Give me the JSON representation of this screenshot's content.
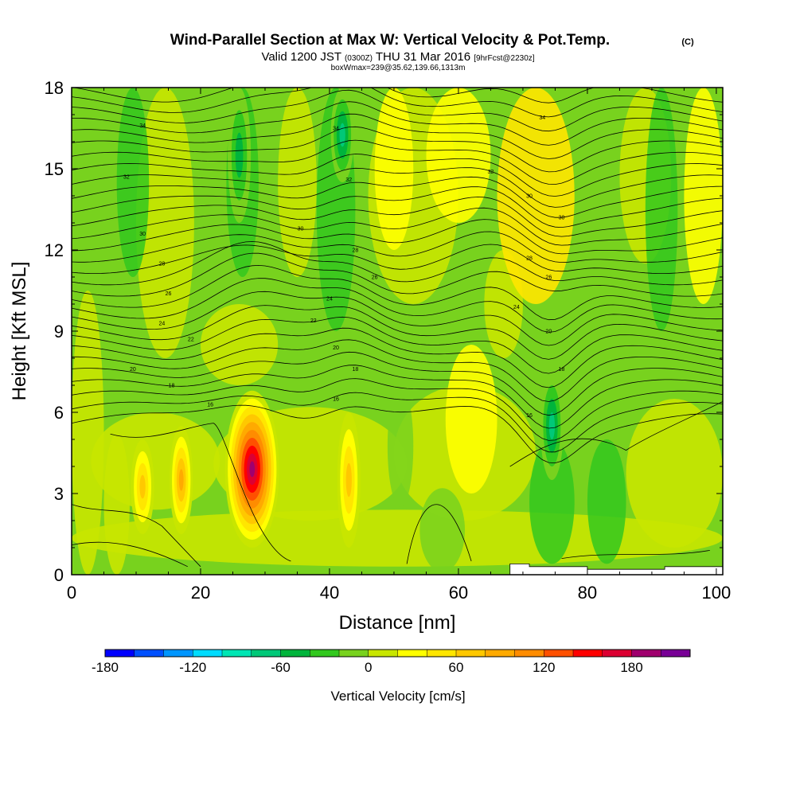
{
  "header": {
    "title": "Wind-Parallel Section at Max W: Vertical Velocity & Pot.Temp.",
    "copyright": "(C)",
    "valid_prefix": "Valid 1200 JST",
    "valid_utc": "(0300Z)",
    "valid_date": "THU 31 Mar 2016",
    "forecast_tag": "[9hrFcst@2230z]",
    "box_info": "boxWmax=239@35.62,139.66,1313m"
  },
  "chart_data": {
    "type": "heatmap",
    "xlabel": "Distance [nm]",
    "ylabel": "Height [Kft MSL]",
    "xlim": [
      0,
      101
    ],
    "ylim": [
      0,
      18
    ],
    "x_ticks": [
      "0",
      "20",
      "40",
      "60",
      "80",
      "100"
    ],
    "y_ticks": [
      "0",
      "3",
      "6",
      "9",
      "12",
      "15",
      "18"
    ],
    "colorbar": {
      "label": "Vertical Velocity [cm/s]",
      "min": -180,
      "max": 220,
      "step": 20,
      "tick_labels": [
        "-180",
        "-120",
        "-60",
        "0",
        "60",
        "120",
        "180"
      ],
      "colors": [
        "#0000ff",
        "#0050ff",
        "#0096ff",
        "#00dcff",
        "#00e6b4",
        "#00c878",
        "#00b43c",
        "#32c81e",
        "#78d21e",
        "#c8e600",
        "#ffff00",
        "#ffe600",
        "#ffc800",
        "#ffaa00",
        "#ff8c00",
        "#ff5000",
        "#ff0000",
        "#dc0032",
        "#a0006e",
        "#780096"
      ]
    },
    "features": [
      {
        "type": "updraft",
        "x": 28,
        "y_range": [
          1.0,
          6.8
        ],
        "peak_w": 200
      },
      {
        "type": "updraft",
        "x": 11,
        "y_range": [
          1.5,
          5.0
        ],
        "peak_w": 80
      },
      {
        "type": "updraft",
        "x": 17,
        "y_range": [
          1.5,
          5.5
        ],
        "peak_w": 90
      },
      {
        "type": "updraft",
        "x": 43,
        "y_range": [
          1.0,
          6.0
        ],
        "peak_w": 80
      },
      {
        "type": "downdraft",
        "x": 74.5,
        "y_range": [
          3.5,
          7.5
        ],
        "peak_w": -80
      },
      {
        "type": "downdraft",
        "x": 42,
        "y_range": [
          14.5,
          18
        ],
        "peak_w": -80
      },
      {
        "type": "downdraft",
        "x": 26,
        "y_range": [
          13,
          18
        ],
        "peak_w": -50
      }
    ],
    "terrain": [
      [
        0,
        0
      ],
      [
        68,
        0
      ],
      [
        68,
        0.4
      ],
      [
        71,
        0.4
      ],
      [
        71,
        0.3
      ],
      [
        80,
        0.3
      ],
      [
        80,
        0.2
      ],
      [
        92,
        0.2
      ],
      [
        92,
        0.3
      ],
      [
        101,
        0.3
      ]
    ],
    "theta_contour_labels": [
      {
        "text": "34",
        "x": 11,
        "y": 16.6
      },
      {
        "text": "32",
        "x": 8.5,
        "y": 14.7
      },
      {
        "text": "30",
        "x": 11,
        "y": 12.6
      },
      {
        "text": "28",
        "x": 14,
        "y": 11.5
      },
      {
        "text": "26",
        "x": 15,
        "y": 10.4
      },
      {
        "text": "24",
        "x": 14,
        "y": 9.3
      },
      {
        "text": "22",
        "x": 18.5,
        "y": 8.7
      },
      {
        "text": "20",
        "x": 9.5,
        "y": 7.6
      },
      {
        "text": "18",
        "x": 15.5,
        "y": 7.0
      },
      {
        "text": "16",
        "x": 21.5,
        "y": 6.3
      },
      {
        "text": "30",
        "x": 35.5,
        "y": 12.8
      },
      {
        "text": "24",
        "x": 40,
        "y": 10.2
      },
      {
        "text": "22",
        "x": 37.5,
        "y": 9.4
      },
      {
        "text": "20",
        "x": 41,
        "y": 8.4
      },
      {
        "text": "18",
        "x": 44,
        "y": 7.6
      },
      {
        "text": "16",
        "x": 41,
        "y": 6.5
      },
      {
        "text": "34",
        "x": 41,
        "y": 16.5
      },
      {
        "text": "32",
        "x": 43,
        "y": 14.6
      },
      {
        "text": "28",
        "x": 44,
        "y": 12.0
      },
      {
        "text": "26",
        "x": 47,
        "y": 11.0
      },
      {
        "text": "34",
        "x": 73,
        "y": 16.9
      },
      {
        "text": "32",
        "x": 65,
        "y": 14.9
      },
      {
        "text": "30",
        "x": 71,
        "y": 14.0
      },
      {
        "text": "30",
        "x": 76,
        "y": 13.2
      },
      {
        "text": "28",
        "x": 71,
        "y": 11.7
      },
      {
        "text": "26",
        "x": 74,
        "y": 11.0
      },
      {
        "text": "24",
        "x": 69,
        "y": 9.9
      },
      {
        "text": "20",
        "x": 74,
        "y": 9.0
      },
      {
        "text": "18",
        "x": 76,
        "y": 7.6
      },
      {
        "text": "16",
        "x": 71,
        "y": 5.9
      }
    ]
  }
}
